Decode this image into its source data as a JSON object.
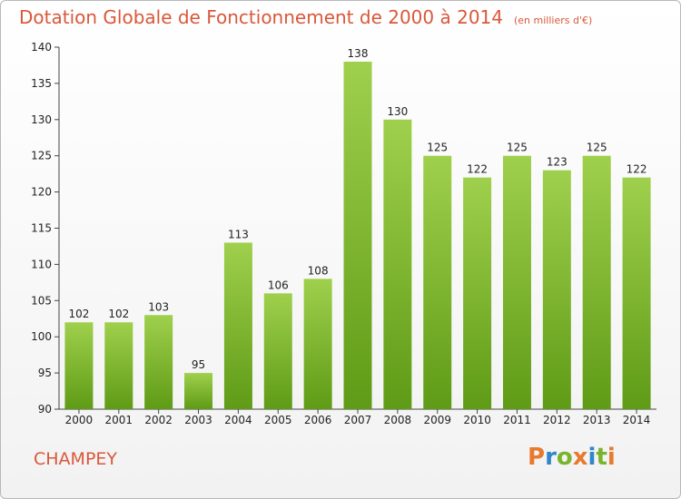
{
  "header": {
    "title": "Dotation Globale de Fonctionnement de 2000 à 2014",
    "unit": "(en milliers d'€)"
  },
  "footer": {
    "commune": "CHAMPEY",
    "logo_text": "Proxiti"
  },
  "colors": {
    "title": "#d9583a",
    "bar_light": "#9fd04d",
    "bar_dark": "#5f9b16",
    "axis": "#444444"
  },
  "chart_data": {
    "type": "bar",
    "title": "Dotation Globale de Fonctionnement de 2000 à 2014",
    "subtitle": "(en milliers d'€)",
    "categories": [
      "2000",
      "2001",
      "2002",
      "2003",
      "2004",
      "2005",
      "2006",
      "2007",
      "2008",
      "2009",
      "2010",
      "2011",
      "2012",
      "2013",
      "2014"
    ],
    "values": [
      102,
      102,
      103,
      95,
      113,
      106,
      108,
      138,
      130,
      125,
      122,
      125,
      123,
      125,
      122
    ],
    "ylim": [
      90,
      140
    ],
    "yticks": [
      90,
      95,
      100,
      105,
      110,
      115,
      120,
      125,
      130,
      135,
      140
    ],
    "grid": false,
    "legend": "none",
    "xlabel": "",
    "ylabel": ""
  }
}
